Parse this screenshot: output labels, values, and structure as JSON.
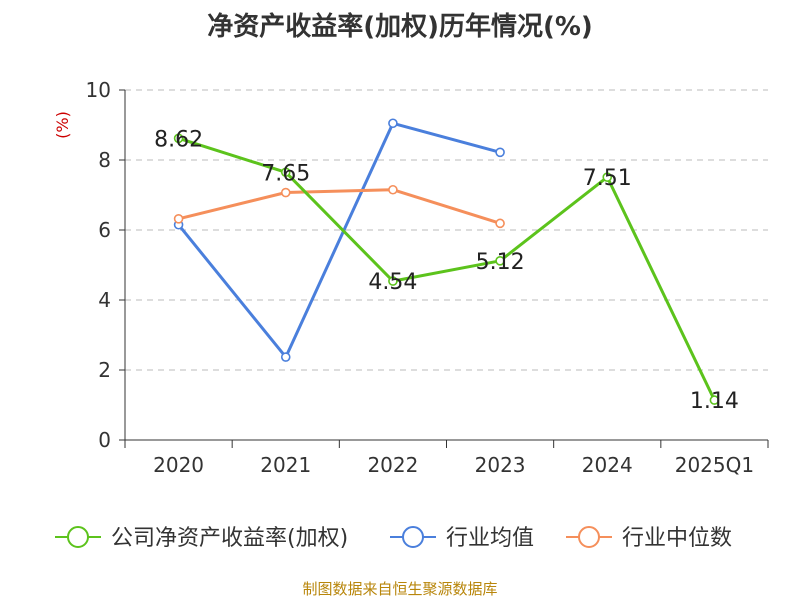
{
  "chart_data": {
    "type": "line",
    "title": "净资产收益率(加权)历年情况(%)",
    "ylabel": "(%)",
    "categories": [
      "2020",
      "2021",
      "2022",
      "2023",
      "2024",
      "2025Q1"
    ],
    "ylim": [
      0,
      10
    ],
    "yticks": [
      0,
      2,
      4,
      6,
      8,
      10
    ],
    "grid": true,
    "legend_position": "bottom",
    "series": [
      {
        "name": "公司净资产收益率(加权)",
        "color": "#5cc31c",
        "values": [
          8.62,
          7.65,
          4.54,
          5.12,
          7.51,
          1.14
        ],
        "labels": [
          "8.62",
          "7.65",
          "4.54",
          "5.12",
          "7.51",
          "1.14"
        ]
      },
      {
        "name": "行业均值",
        "color": "#4a7fdc",
        "values": [
          6.15,
          2.37,
          9.05,
          8.22,
          null,
          null
        ]
      },
      {
        "name": "行业中位数",
        "color": "#f58f5b",
        "values": [
          6.32,
          7.07,
          7.15,
          6.19,
          null,
          null
        ]
      }
    ]
  },
  "source": "制图数据来自恒生聚源数据库"
}
